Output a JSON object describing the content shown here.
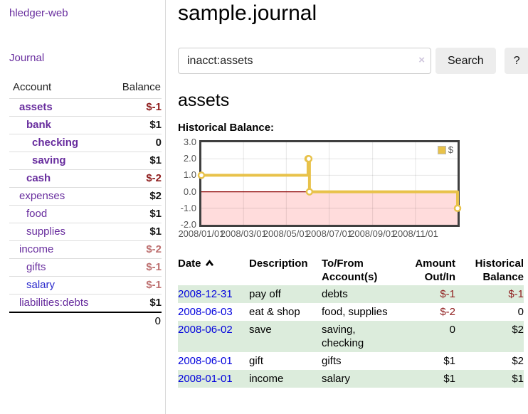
{
  "colors": {
    "purple": "#682d9e",
    "link_blue": "#0202dd",
    "visited_blue": "#2b2acc",
    "neg_dark": "#8f1d1d",
    "neg_muted": "#bd6f6f",
    "row_green": "#dcecdc",
    "chart_gold": "#e8c24a",
    "chart_pink": "#ffdcdc",
    "chart_zero_red": "#8b0000",
    "chart_border": "#3f3f3f"
  },
  "sidebar": {
    "brand": "hledger-web",
    "nav_journal": "Journal",
    "accounts_header": {
      "account": "Account",
      "balance": "Balance"
    },
    "accounts": [
      {
        "name": "assets",
        "depth": 1,
        "bold": true,
        "balance": "$-1",
        "balance_style": "neg"
      },
      {
        "name": "bank",
        "depth": 2,
        "bold": true,
        "balance": "$1",
        "balance_style": "pos"
      },
      {
        "name": "checking",
        "depth": 3,
        "bold": true,
        "balance": "0",
        "balance_style": "pos"
      },
      {
        "name": "saving",
        "depth": 3,
        "bold": true,
        "balance": "$1",
        "balance_style": "pos"
      },
      {
        "name": "cash",
        "depth": 2,
        "bold": true,
        "balance": "$-2",
        "balance_style": "neg"
      },
      {
        "name": "expenses",
        "depth": 1,
        "bold": false,
        "balance": "$2",
        "balance_style": "pos"
      },
      {
        "name": "food",
        "depth": 2,
        "bold": false,
        "balance": "$1",
        "balance_style": "pos"
      },
      {
        "name": "supplies",
        "depth": 2,
        "bold": false,
        "balance": "$1",
        "balance_style": "pos"
      },
      {
        "name": "income",
        "depth": 1,
        "bold": false,
        "balance": "$-2",
        "balance_style": "neg-muted"
      },
      {
        "name": "gifts",
        "depth": 2,
        "bold": false,
        "balance": "$-1",
        "balance_style": "neg-muted"
      },
      {
        "name": "salary",
        "depth": 2,
        "bold": false,
        "balance": "$-1",
        "balance_style": "neg-muted",
        "visited": true
      },
      {
        "name": "liabilities:debts",
        "depth": 1,
        "bold": false,
        "balance": "$1",
        "balance_style": "pos"
      }
    ],
    "total": "0"
  },
  "main": {
    "title": "sample.journal",
    "search": {
      "query": "inacct:assets",
      "clear_icon": "×",
      "button_label": "Search",
      "help_label": "?"
    },
    "account_heading": "assets",
    "chart_title": "Historical Balance:"
  },
  "chart_data": {
    "type": "line",
    "step": true,
    "title": "Historical Balance:",
    "series": [
      {
        "name": "$",
        "color": "#e8c24a",
        "points": [
          {
            "date": "2008-01-01",
            "day": 0,
            "value": 1
          },
          {
            "date": "2008-06-01",
            "day": 152,
            "value": 2
          },
          {
            "date": "2008-06-02",
            "day": 153,
            "value": 2
          },
          {
            "date": "2008-06-03",
            "day": 154,
            "value": 0
          },
          {
            "date": "2008-12-31",
            "day": 365,
            "value": -1
          }
        ]
      }
    ],
    "xlabel": "",
    "ylabel": "",
    "ylim": [
      -2,
      3
    ],
    "x_domain_days": 365,
    "ytick_labels": [
      "3.0",
      "2.0",
      "1.0",
      "0.0",
      "-1.0",
      "-2.0"
    ],
    "yticks": [
      3,
      2,
      1,
      0,
      -1,
      -2
    ],
    "xtick_labels": [
      "2008/01/01",
      "2008/03/01",
      "2008/05/01",
      "2008/07/01",
      "2008/09/01",
      "2008/11/01"
    ],
    "xtick_days": [
      0,
      60,
      121,
      182,
      244,
      305
    ],
    "grid": true,
    "legend_position": "top-right",
    "negative_region_shaded": true
  },
  "register": {
    "headers": {
      "date": "Date",
      "description": "Description",
      "accounts": "To/From Account(s)",
      "amount": "Amount Out/In",
      "balance": "Historical Balance"
    },
    "sort_icon": "chevron-up",
    "rows": [
      {
        "date": "2008-12-31",
        "description": "pay off",
        "accounts": "debts",
        "amount": "$-1",
        "balance": "$-1"
      },
      {
        "date": "2008-06-03",
        "description": "eat & shop",
        "accounts": "food, supplies",
        "amount": "$-2",
        "balance": "0"
      },
      {
        "date": "2008-06-02",
        "description": "save",
        "accounts": "saving, checking",
        "amount": "0",
        "balance": "$2"
      },
      {
        "date": "2008-06-01",
        "description": "gift",
        "accounts": "gifts",
        "amount": "$1",
        "balance": "$2"
      },
      {
        "date": "2008-01-01",
        "description": "income",
        "accounts": "salary",
        "amount": "$1",
        "balance": "$1"
      }
    ]
  }
}
